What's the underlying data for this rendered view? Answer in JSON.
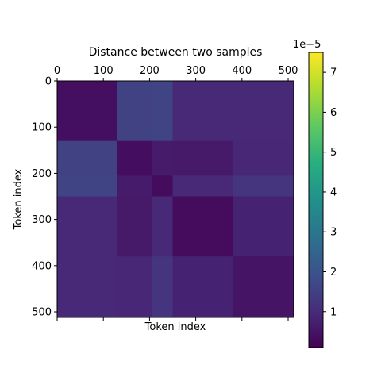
{
  "chart_data": {
    "type": "heatmap",
    "title": "Distance between two samples",
    "xlabel": "Token index",
    "ylabel": "Token index",
    "x_ticks": [
      0,
      100,
      200,
      300,
      400,
      500
    ],
    "y_ticks": [
      0,
      100,
      200,
      300,
      400,
      500
    ],
    "x_range": [
      0,
      512
    ],
    "y_range": [
      0,
      512
    ],
    "colorbar": {
      "ticks": [
        1,
        2,
        3,
        4,
        5,
        6,
        7
      ],
      "offset_label": "1e−5",
      "range": [
        0.1,
        7.5
      ],
      "colormap": "viridis"
    },
    "segments": [
      0,
      130,
      205,
      250,
      380,
      512
    ],
    "block_values": [
      [
        0.4,
        1.55,
        1.6,
        0.95,
        0.95
      ],
      [
        1.55,
        0.35,
        0.65,
        0.6,
        0.9
      ],
      [
        1.6,
        0.65,
        0.3,
        0.95,
        1.2
      ],
      [
        0.95,
        0.6,
        0.95,
        0.3,
        0.8
      ],
      [
        0.95,
        0.9,
        1.2,
        0.8,
        0.5
      ]
    ],
    "block_values_unit": "1e-5"
  }
}
